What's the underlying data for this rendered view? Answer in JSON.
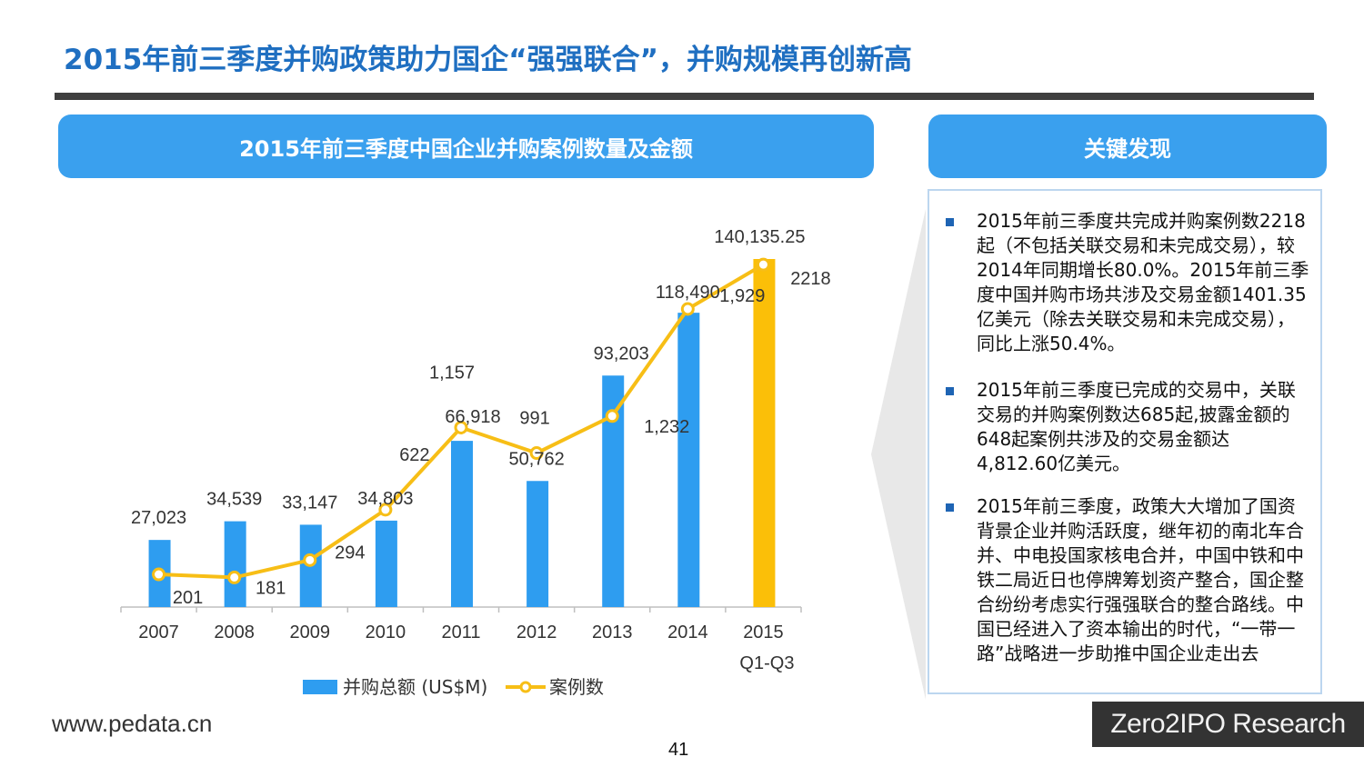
{
  "page": {
    "title": "2015年前三季度并购政策助力国企“强强联合”，并购规模再创新高",
    "page_number": "41",
    "footer_url": "www.pedata.cn",
    "brand": "Zero2IPO Research"
  },
  "chart_panel": {
    "title": "2015年前三季度中国企业并购案例数量及金额"
  },
  "findings_panel": {
    "title": "关键发现",
    "items": [
      "2015年前三季度共完成并购案例数2218起（不包括关联交易和未完成交易），较2014年同期增长80.0%。2015年前三季度中国并购市场共涉及交易金额1401.35亿美元（除去关联交易和未完成交易），同比上涨50.4%。",
      "2015年前三季度已完成的交易中，关联交易的并购案例数达685起,披露金额的648起案例共涉及的交易金额达4,812.60亿美元。",
      "2015年前三季度，政策大大增加了国资背景企业并购活跃度，继年初的南北车合并、中电投国家核电合并，中国中铁和中铁二局近日也停牌筹划资产整合，国企整合纷纷考虑实行强强联合的整合路线。中国已经进入了资本输出的时代，“一带一路”战略进一步助推中国企业走出去"
    ]
  },
  "colors": {
    "bar": "#2e9df0",
    "bar_highlight": "#fbbf08",
    "line": "#f7be16",
    "header": "#3aa0ee",
    "title": "#1f6fc1"
  },
  "chart_data": {
    "type": "bar",
    "categories": [
      "2007",
      "2008",
      "2009",
      "2010",
      "2011",
      "2012",
      "2013",
      "2014",
      "2015\nQ1-Q3"
    ],
    "series": [
      {
        "name": "并购总额 (US$M)",
        "type": "bar",
        "values": [
          27023,
          34539,
          33147,
          34803,
          66918,
          50762,
          93203,
          118490,
          140135.25
        ],
        "labels": [
          "27,023",
          "34,539",
          "33,147",
          "34,803",
          "66,918",
          "50,762",
          "93,203",
          "118,490",
          "140,135.25"
        ]
      },
      {
        "name": "案例数",
        "type": "line",
        "values": [
          201,
          181,
          294,
          622,
          1157,
          991,
          1232,
          1929,
          2218
        ],
        "labels": [
          "201",
          "181",
          "294",
          "622",
          "1,157",
          "991",
          "1,232",
          "1,929",
          "2218"
        ]
      }
    ],
    "highlight_category_index": 8,
    "legend_position": "bottom",
    "grid": false,
    "bar_axis_range": [
      0,
      140135.25
    ],
    "line_axis_range": [
      0,
      2400
    ]
  }
}
